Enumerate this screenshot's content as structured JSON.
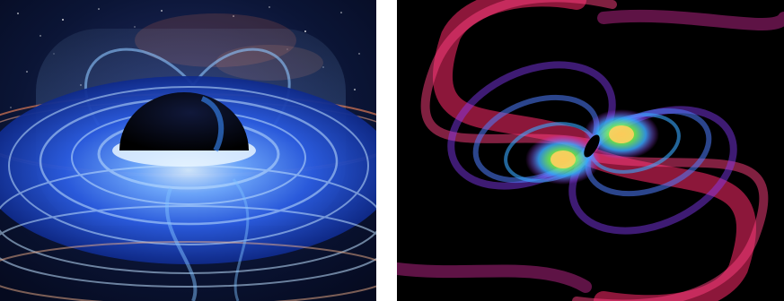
{
  "figure": {
    "panels": [
      {
        "subject": "black-hole-accretion-disk-illustration",
        "palette": [
          "#07102e",
          "#2f6cf0",
          "#9fd0ff",
          "#e07050",
          "#000000"
        ]
      },
      {
        "subject": "gravitational-wave-simulation-visualization",
        "palette": [
          "#000000",
          "#ff2a6a",
          "#c22cff",
          "#38a8ff",
          "#7cff5a",
          "#ffb02a"
        ]
      }
    ]
  }
}
